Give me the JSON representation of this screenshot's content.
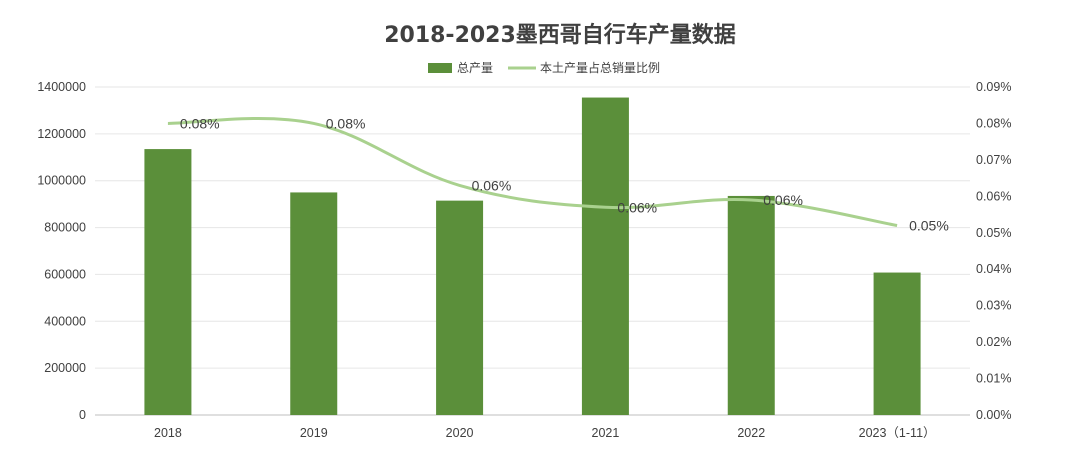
{
  "chart_data": {
    "type": "bar",
    "title": "2018-2023墨西哥自行车产量数据",
    "categories": [
      "2018",
      "2019",
      "2020",
      "2021",
      "2022",
      "2023（1-11）"
    ],
    "series": [
      {
        "name": "总产量",
        "type": "bar",
        "axis": "left",
        "color": "#5b8f3a",
        "values": [
          1135000,
          950000,
          915000,
          1355000,
          935000,
          608000
        ]
      },
      {
        "name": "本土产量占总销量比例",
        "type": "line",
        "axis": "right",
        "color": "#a9d18e",
        "values": [
          0.0008,
          0.0008,
          0.00063,
          0.00057,
          0.00059,
          0.00052
        ],
        "labels": [
          "0.08%",
          "0.08%",
          "0.06%",
          "0.06%",
          "0.06%",
          "0.05%"
        ]
      }
    ],
    "y_left": {
      "min": 0,
      "max": 1400000,
      "ticks": [
        "0",
        "200000",
        "400000",
        "600000",
        "800000",
        "1000000",
        "1200000",
        "1400000"
      ]
    },
    "y_right": {
      "min": 0,
      "max": 0.0009,
      "ticks": [
        "0.00%",
        "0.01%",
        "0.02%",
        "0.03%",
        "0.04%",
        "0.05%",
        "0.06%",
        "0.07%",
        "0.08%",
        "0.09%"
      ]
    },
    "grid": true,
    "legend": "top"
  }
}
